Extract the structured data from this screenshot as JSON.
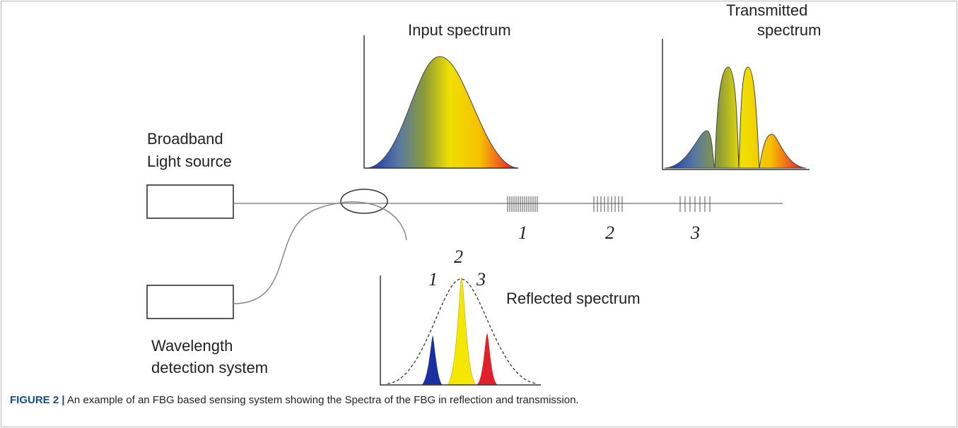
{
  "input_spectrum": "Input spectrum",
  "transmitted_spectrum": [
    "Transmitted",
    "spectrum"
  ],
  "light_source": [
    "Broadband",
    "Light source"
  ],
  "detector": [
    "Wavelength",
    "detection system"
  ],
  "reflected_spectrum": "Reflected spectrum",
  "gratings": [
    "1",
    "2",
    "3"
  ],
  "reflected_peaks": [
    "1",
    "2",
    "3"
  ],
  "caption": {
    "label": "FIGURE 2 |",
    "text": "An example of an FBG based sensing system showing the Spectra of the FBG in reflection and transmission."
  }
}
